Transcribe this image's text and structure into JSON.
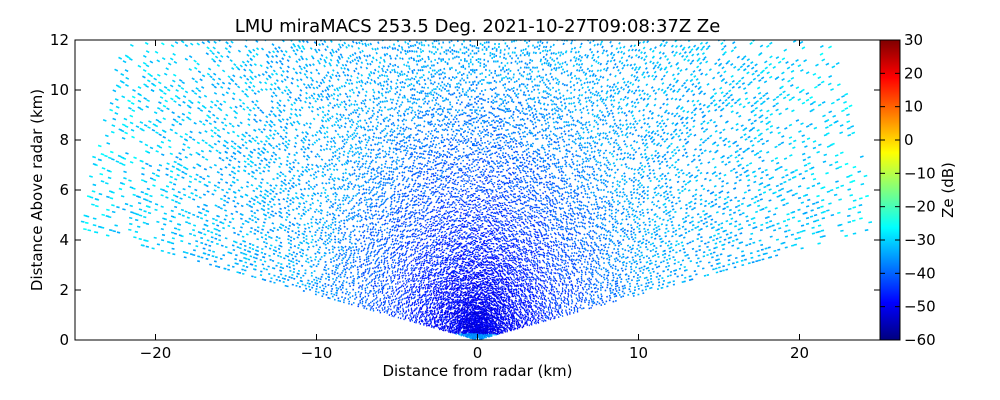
{
  "chart_data": {
    "type": "heatmap",
    "subtype": "radar RHI scan (sector)",
    "title": "LMU miraMACS 253.5 Deg. 2021-10-27T09:08:37Z  Ze",
    "xlabel": "Distance from radar (km)",
    "ylabel": "Distance Above radar  (km)",
    "xlim": [
      -25,
      25
    ],
    "ylim": [
      0,
      12
    ],
    "xticks": [
      -20,
      -10,
      0,
      10,
      20
    ],
    "xtick_labels": [
      "−20",
      "−10",
      "0",
      "10",
      "20"
    ],
    "yticks": [
      0,
      2,
      4,
      6,
      8,
      10,
      12
    ],
    "ytick_labels": [
      "0",
      "2",
      "4",
      "6",
      "8",
      "10",
      "12"
    ],
    "colorbar": {
      "label": "Ze (dB)",
      "range": [
        -60,
        30
      ],
      "ticks": [
        30,
        20,
        10,
        0,
        -10,
        -20,
        -30,
        -40,
        -50,
        -60
      ],
      "tick_labels": [
        "30",
        "20",
        "10",
        "0",
        "−10",
        "−20",
        "−30",
        "−40",
        "−50",
        "−60"
      ],
      "colormap": "jet",
      "colors": [
        "#00007f",
        "#0000ff",
        "#007fff",
        "#00ffff",
        "#7fff7f",
        "#ffff00",
        "#ff7f00",
        "#ff0000",
        "#7f0000"
      ]
    },
    "scan": {
      "max_range_km": 25,
      "elevation_start_deg": 10,
      "elevation_end_deg": 170,
      "field_description": "Ze near -50 to -45 dB close to radar (below ~3 km), about -40 dB at mid heights, around -32 to -30 dB aloft and toward the sector edges"
    }
  }
}
